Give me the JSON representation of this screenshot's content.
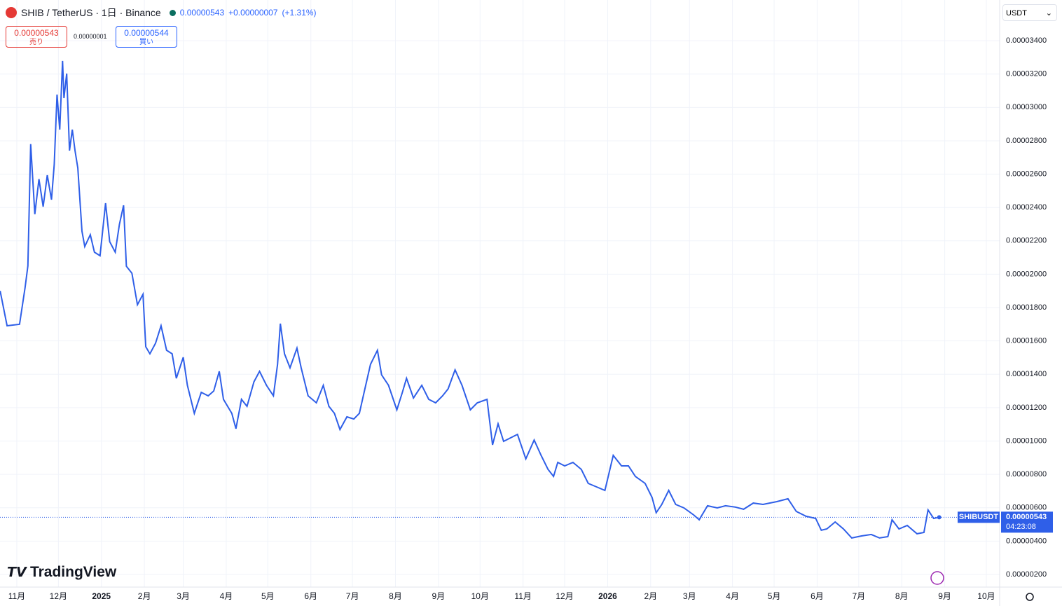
{
  "header": {
    "symbol": "SHIB / TetherUS · 1日 · Binance",
    "price": "0.00000543",
    "change": "+0.00000007",
    "change_pct": "(+1.31%)",
    "sell_price": "0.00000543",
    "sell_label": "売り",
    "spread": "0.00000001",
    "buy_price": "0.00000544",
    "buy_label": "買い",
    "currency": "USDT",
    "brand": "TradingView"
  },
  "chart_data": {
    "type": "line",
    "color": "#2f5fe8",
    "grid": true,
    "xlim": [
      -12.1,
      708.6
    ],
    "ylim": [
      1.244e-06,
      3.644e-05
    ],
    "xticks": [
      {
        "value": 0,
        "label": "11月"
      },
      {
        "value": 30,
        "label": "12月"
      },
      {
        "value": 61,
        "label": "2025"
      },
      {
        "value": 92,
        "label": "2月"
      },
      {
        "value": 120,
        "label": "3月"
      },
      {
        "value": 151,
        "label": "4月"
      },
      {
        "value": 181,
        "label": "5月"
      },
      {
        "value": 212,
        "label": "6月"
      },
      {
        "value": 242,
        "label": "7月"
      },
      {
        "value": 273,
        "label": "8月"
      },
      {
        "value": 304,
        "label": "9月"
      },
      {
        "value": 334,
        "label": "10月"
      },
      {
        "value": 365,
        "label": "11月"
      },
      {
        "value": 395,
        "label": "12月"
      },
      {
        "value": 426,
        "label": "2026"
      },
      {
        "value": 457,
        "label": "2月"
      },
      {
        "value": 485,
        "label": "3月"
      },
      {
        "value": 516,
        "label": "4月"
      },
      {
        "value": 546,
        "label": "5月"
      },
      {
        "value": 577,
        "label": "6月"
      },
      {
        "value": 607,
        "label": "7月"
      },
      {
        "value": 638,
        "label": "8月"
      },
      {
        "value": 669,
        "label": "9月"
      },
      {
        "value": 699,
        "label": "10月"
      }
    ],
    "yticks": [
      {
        "value": 3.4e-05,
        "label": "0.00003400"
      },
      {
        "value": 3.2e-05,
        "label": "0.00003200"
      },
      {
        "value": 3e-05,
        "label": "0.00003000"
      },
      {
        "value": 2.8e-05,
        "label": "0.00002800"
      },
      {
        "value": 2.6e-05,
        "label": "0.00002600"
      },
      {
        "value": 2.4e-05,
        "label": "0.00002400"
      },
      {
        "value": 2.2e-05,
        "label": "0.00002200"
      },
      {
        "value": 2e-05,
        "label": "0.00002000"
      },
      {
        "value": 1.8e-05,
        "label": "0.00001800"
      },
      {
        "value": 1.6e-05,
        "label": "0.00001600"
      },
      {
        "value": 1.4e-05,
        "label": "0.00001400"
      },
      {
        "value": 1.2e-05,
        "label": "0.00001200"
      },
      {
        "value": 1e-05,
        "label": "0.00001000"
      },
      {
        "value": 8e-06,
        "label": "0.00000800"
      },
      {
        "value": 6e-06,
        "label": "0.00000600"
      },
      {
        "value": 4e-06,
        "label": "0.00000400"
      },
      {
        "value": 2e-06,
        "label": "0.00000200"
      }
    ],
    "price_line": {
      "name": "SHIBUSDT",
      "value": 5.43e-06,
      "label": "0.00000543",
      "countdown": "04:23:08"
    },
    "x": [
      -12,
      -7,
      2,
      6,
      8,
      10,
      13,
      16,
      19,
      22,
      25,
      27,
      29,
      31,
      33,
      34,
      36,
      38,
      40,
      42,
      44,
      47,
      49,
      53,
      56,
      60,
      64,
      67,
      71,
      74,
      77,
      79,
      83,
      87,
      91,
      93,
      96,
      100,
      104,
      108,
      112,
      115,
      120,
      123,
      128,
      133,
      138,
      142,
      146,
      149,
      155,
      158,
      162,
      166,
      171,
      175,
      180,
      185,
      188,
      190,
      193,
      197,
      202,
      205,
      210,
      216,
      221,
      225,
      229,
      233,
      238,
      243,
      247,
      251,
      255,
      260,
      263,
      268,
      274,
      278,
      281,
      286,
      292,
      297,
      302,
      307,
      311,
      316,
      321,
      327,
      332,
      339,
      343,
      347,
      351,
      356,
      361,
      367,
      373,
      378,
      383,
      387,
      390,
      395,
      401,
      407,
      412,
      418,
      424,
      430,
      436,
      441,
      446,
      453,
      458,
      461,
      465,
      470,
      475,
      481,
      488,
      492,
      498,
      505,
      511,
      518,
      524,
      531,
      538,
      548,
      556,
      562,
      569,
      576,
      580,
      584,
      590,
      596,
      602,
      609,
      616,
      622,
      628,
      631,
      636,
      642,
      649,
      654,
      657,
      661,
      665
    ],
    "values": [
      1.9e-05,
      1.691e-05,
      1.7e-05,
      1.92e-05,
      2.05e-05,
      2.78e-05,
      2.36e-05,
      2.57e-05,
      2.405e-05,
      2.594e-05,
      2.447e-05,
      2.657e-05,
      3.077e-05,
      2.867e-05,
      3.279e-05,
      3.056e-05,
      3.203e-05,
      2.741e-05,
      2.867e-05,
      2.741e-05,
      2.636e-05,
      2.258e-05,
      2.166e-05,
      2.237e-05,
      2.132e-05,
      2.111e-05,
      2.426e-05,
      2.195e-05,
      2.132e-05,
      2.3e-05,
      2.413e-05,
      2.048e-05,
      2.006e-05,
      1.817e-05,
      1.88e-05,
      1.565e-05,
      1.523e-05,
      1.586e-05,
      1.691e-05,
      1.544e-05,
      1.523e-05,
      1.376e-05,
      1.502e-05,
      1.334e-05,
      1.166e-05,
      1.292e-05,
      1.271e-05,
      1.3e-05,
      1.418e-05,
      1.25e-05,
      1.166e-05,
      1.074e-05,
      1.25e-05,
      1.208e-05,
      1.355e-05,
      1.418e-05,
      1.334e-05,
      1.271e-05,
      1.46e-05,
      1.704e-05,
      1.523e-05,
      1.439e-05,
      1.557e-05,
      1.439e-05,
      1.271e-05,
      1.229e-05,
      1.334e-05,
      1.208e-05,
      1.166e-05,
      1.069e-05,
      1.145e-05,
      1.132e-05,
      1.166e-05,
      1.313e-05,
      1.46e-05,
      1.544e-05,
      1.397e-05,
      1.334e-05,
      1.187e-05,
      1.292e-05,
      1.376e-05,
      1.258e-05,
      1.334e-05,
      1.25e-05,
      1.229e-05,
      1.271e-05,
      1.313e-05,
      1.427e-05,
      1.334e-05,
      1.187e-05,
      1.229e-05,
      1.25e-05,
      9.77e-06,
      1.103e-05,
      9.98e-06,
      1.019e-05,
      1.04e-05,
      8.93e-06,
      1.006e-05,
      9.14e-06,
      8.3e-06,
      7.88e-06,
      8.72e-06,
      8.51e-06,
      8.72e-06,
      8.3e-06,
      7.46e-06,
      7.25e-06,
      7.04e-06,
      9.14e-06,
      8.51e-06,
      8.51e-06,
      7.88e-06,
      7.46e-06,
      6.62e-06,
      5.7e-06,
      6.2e-06,
      7.04e-06,
      6.2e-06,
      5.99e-06,
      5.57e-06,
      5.28e-06,
      6.12e-06,
      5.99e-06,
      6.12e-06,
      6.04e-06,
      5.91e-06,
      6.28e-06,
      6.2e-06,
      6.37e-06,
      6.54e-06,
      5.78e-06,
      5.49e-06,
      5.36e-06,
      4.65e-06,
      4.73e-06,
      5.15e-06,
      4.73e-06,
      4.19e-06,
      4.31e-06,
      4.4e-06,
      4.19e-06,
      4.27e-06,
      5.28e-06,
      4.73e-06,
      4.94e-06,
      4.44e-06,
      4.52e-06,
      5.87e-06,
      5.36e-06,
      5.43e-06
    ]
  }
}
